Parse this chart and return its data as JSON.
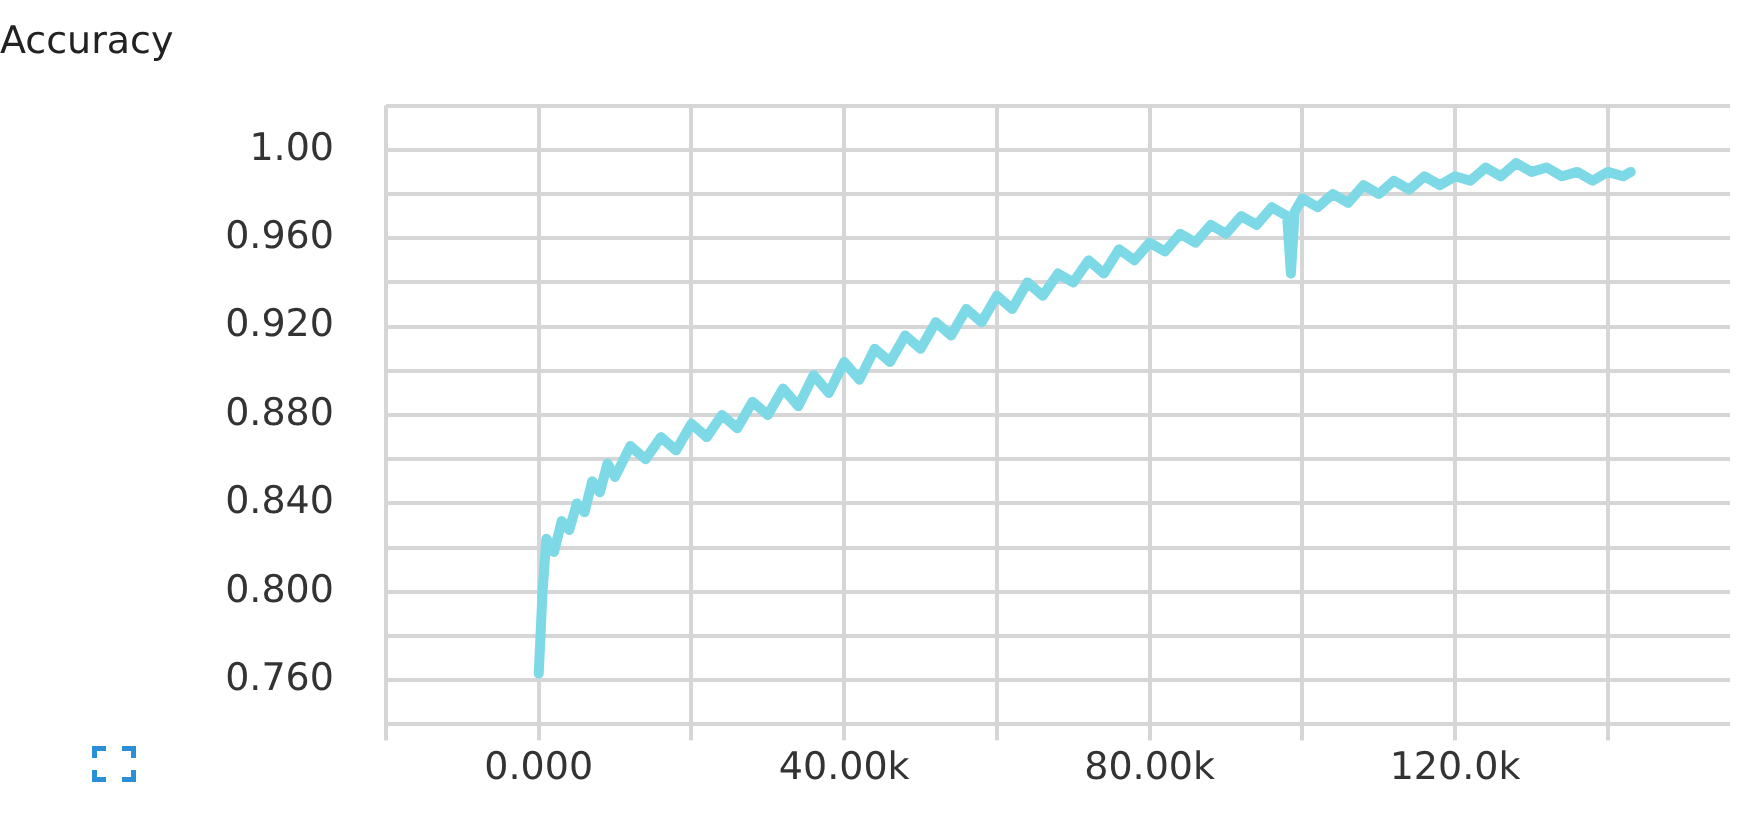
{
  "chart_data": {
    "type": "line",
    "title": "Accuracy",
    "x": [
      0,
      500,
      1000,
      2000,
      3000,
      4000,
      5000,
      6000,
      7000,
      8000,
      9000,
      10000,
      12000,
      14000,
      16000,
      18000,
      20000,
      22000,
      24000,
      26000,
      28000,
      30000,
      32000,
      34000,
      36000,
      38000,
      40000,
      42000,
      44000,
      46000,
      48000,
      50000,
      52000,
      54000,
      56000,
      58000,
      60000,
      62000,
      64000,
      66000,
      68000,
      70000,
      72000,
      74000,
      76000,
      78000,
      80000,
      82000,
      84000,
      86000,
      88000,
      90000,
      92000,
      94000,
      96000,
      98000,
      98500,
      99000,
      100000,
      102000,
      104000,
      106000,
      108000,
      110000,
      112000,
      114000,
      116000,
      118000,
      120000,
      122000,
      124000,
      126000,
      128000,
      130000,
      132000,
      134000,
      136000,
      138000,
      140000,
      142000,
      143000
    ],
    "series": [
      {
        "color": "#7dd9e6",
        "values": [
          0.763,
          0.8,
          0.824,
          0.818,
          0.832,
          0.828,
          0.84,
          0.836,
          0.85,
          0.845,
          0.858,
          0.852,
          0.866,
          0.86,
          0.87,
          0.864,
          0.876,
          0.87,
          0.88,
          0.874,
          0.886,
          0.88,
          0.892,
          0.884,
          0.898,
          0.89,
          0.904,
          0.896,
          0.91,
          0.904,
          0.916,
          0.91,
          0.922,
          0.916,
          0.928,
          0.922,
          0.934,
          0.928,
          0.94,
          0.934,
          0.944,
          0.94,
          0.95,
          0.944,
          0.955,
          0.95,
          0.958,
          0.954,
          0.962,
          0.958,
          0.966,
          0.962,
          0.97,
          0.966,
          0.974,
          0.97,
          0.944,
          0.972,
          0.978,
          0.974,
          0.98,
          0.976,
          0.984,
          0.98,
          0.986,
          0.982,
          0.988,
          0.984,
          0.988,
          0.986,
          0.992,
          0.988,
          0.994,
          0.99,
          0.992,
          0.988,
          0.99,
          0.986,
          0.99,
          0.988,
          0.99
        ]
      }
    ],
    "xlim": [
      -20000,
      156000
    ],
    "xticks": [
      {
        "value": -20000,
        "label": null
      },
      {
        "value": 0,
        "label": "0.000"
      },
      {
        "value": 20000,
        "label": null
      },
      {
        "value": 40000,
        "label": "40.00k"
      },
      {
        "value": 60000,
        "label": null
      },
      {
        "value": 80000,
        "label": "80.00k"
      },
      {
        "value": 100000,
        "label": null
      },
      {
        "value": 120000,
        "label": "120.0k"
      },
      {
        "value": 140000,
        "label": null
      }
    ],
    "ylim": [
      0.74,
      1.02
    ],
    "yticks": [
      {
        "value": 0.74,
        "label": null
      },
      {
        "value": 0.76,
        "label": "0.760"
      },
      {
        "value": 0.78,
        "label": null
      },
      {
        "value": 0.8,
        "label": "0.800"
      },
      {
        "value": 0.82,
        "label": null
      },
      {
        "value": 0.84,
        "label": "0.840"
      },
      {
        "value": 0.86,
        "label": null
      },
      {
        "value": 0.88,
        "label": "0.880"
      },
      {
        "value": 0.9,
        "label": null
      },
      {
        "value": 0.92,
        "label": "0.920"
      },
      {
        "value": 0.94,
        "label": null
      },
      {
        "value": 0.96,
        "label": "0.960"
      },
      {
        "value": 0.98,
        "label": null
      },
      {
        "value": 1.0,
        "label": "1.00"
      },
      {
        "value": 1.02,
        "label": null
      }
    ],
    "grid": true,
    "legend": false,
    "marker": "none",
    "line_style": "solid"
  }
}
